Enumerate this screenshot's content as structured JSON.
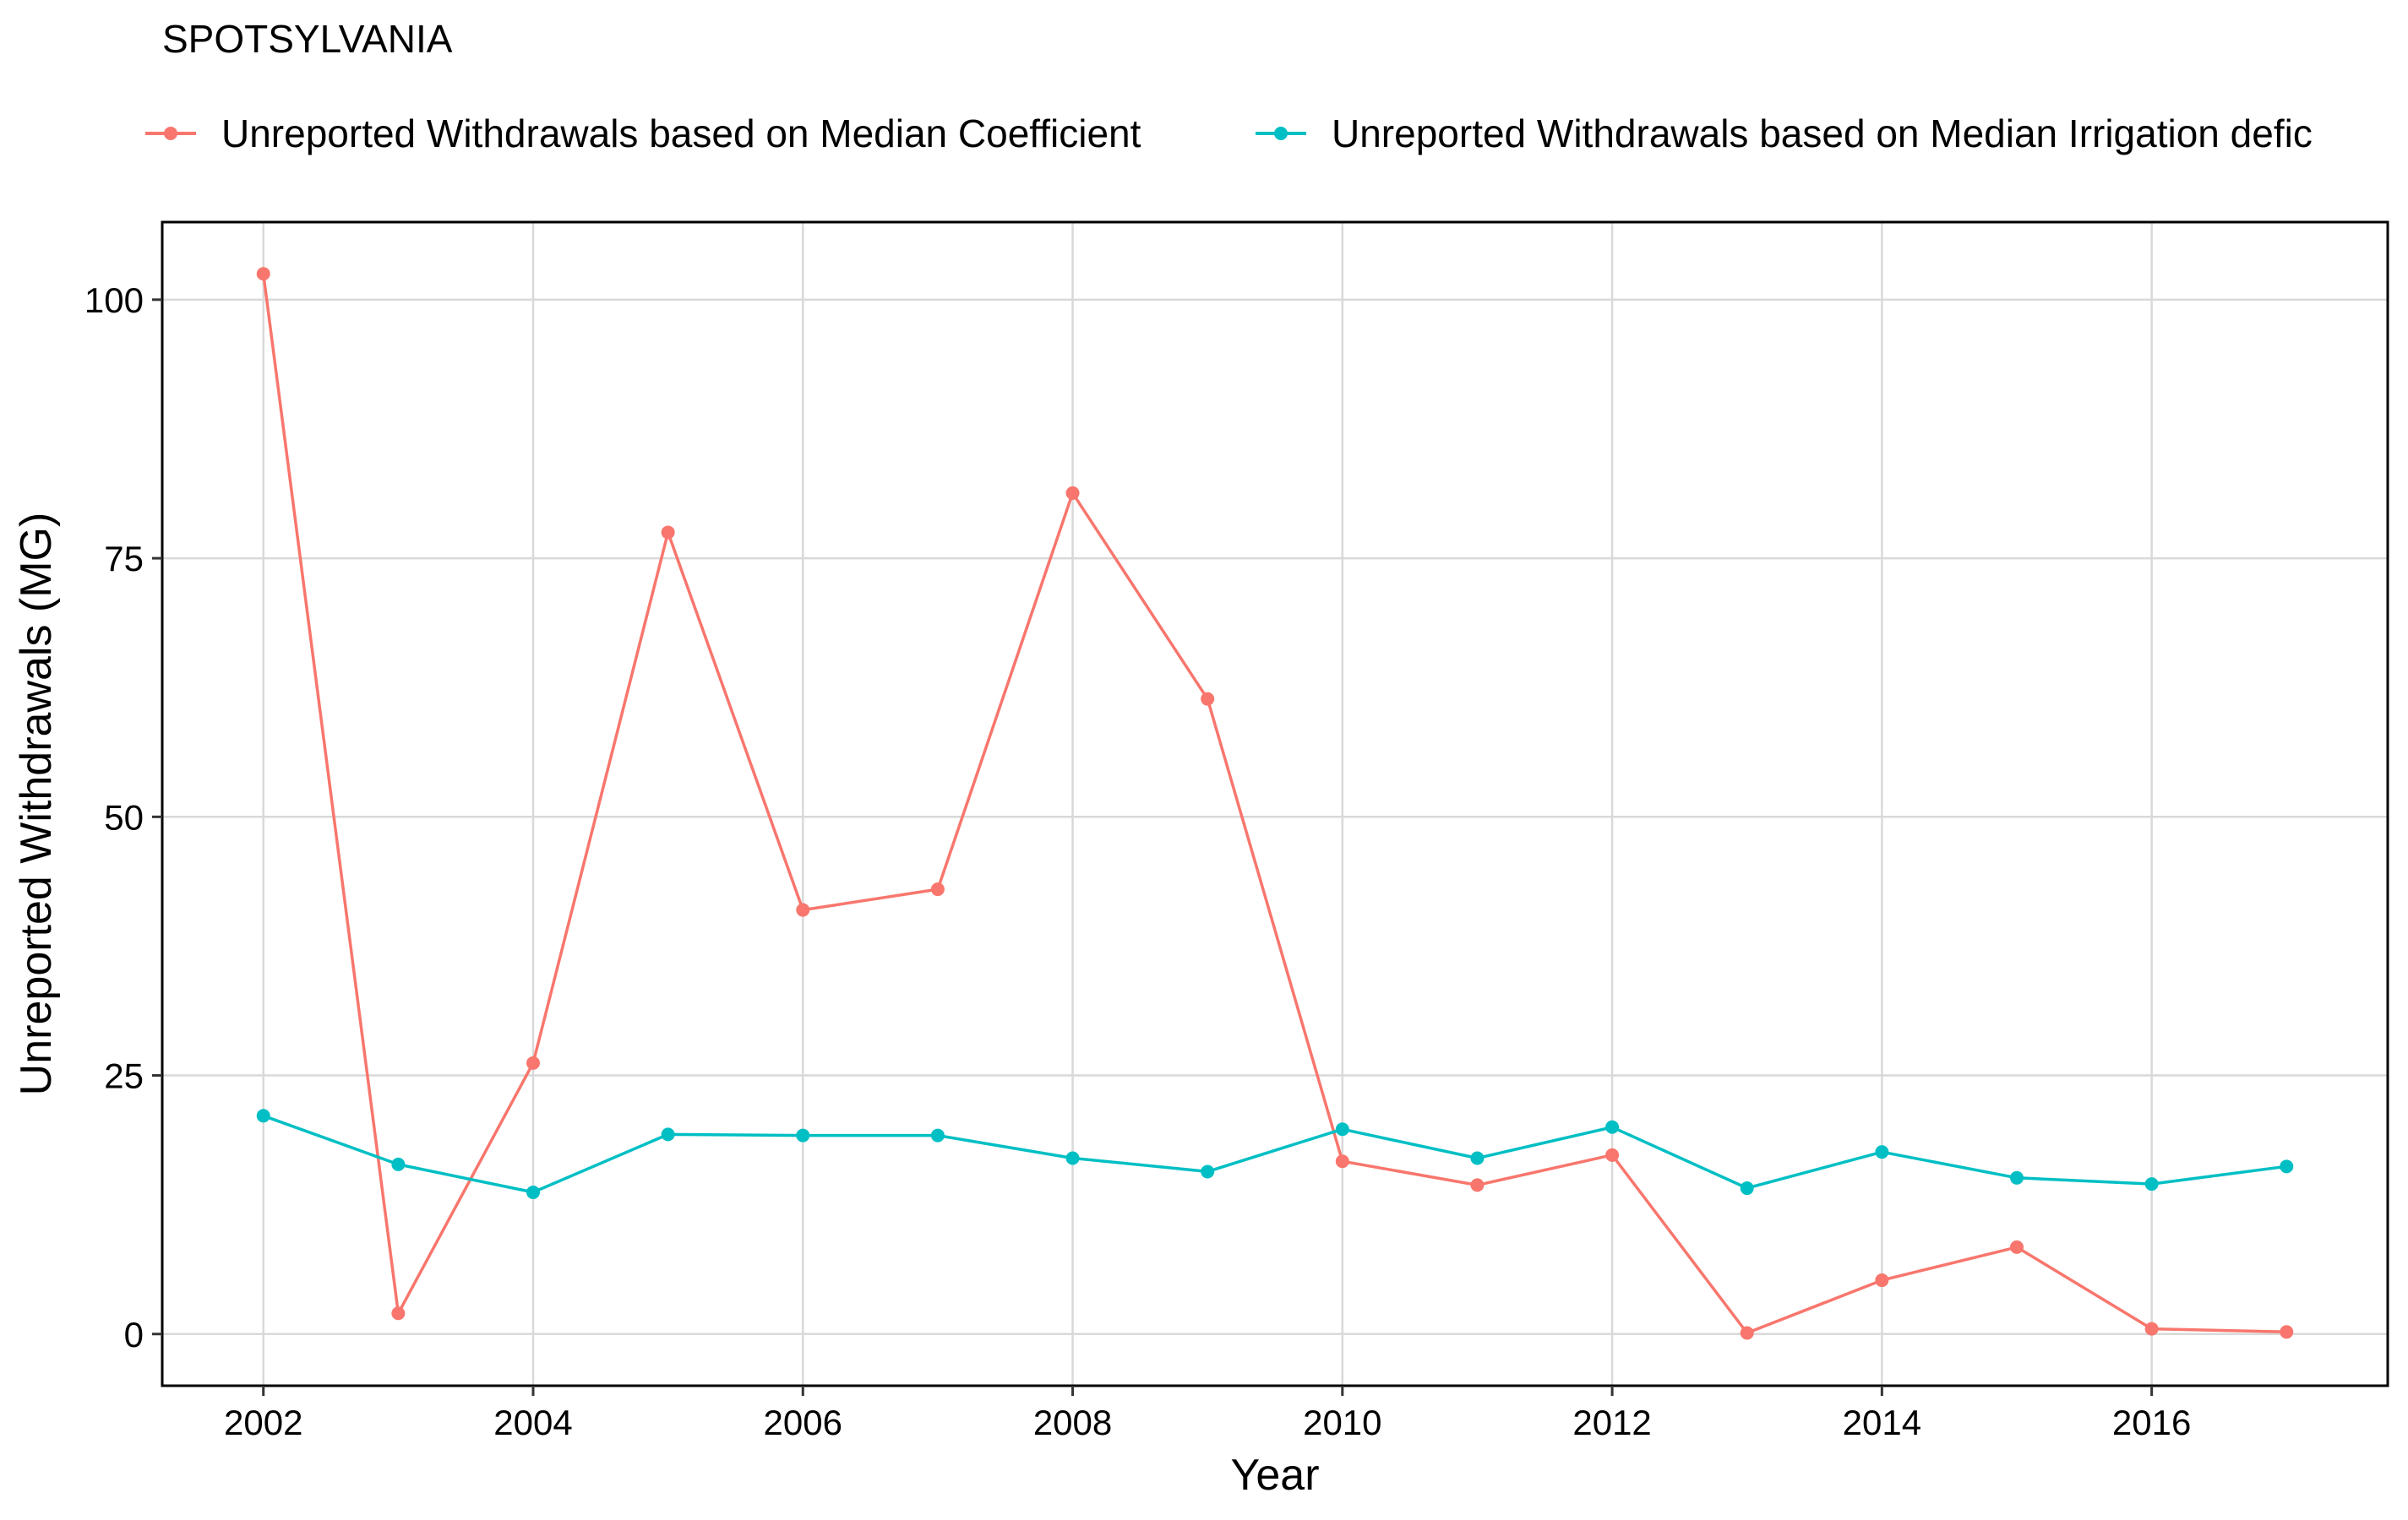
{
  "chart_data": {
    "type": "line",
    "title": "SPOTSYLVANIA",
    "xlabel": "Year",
    "ylabel": "Unreported Withdrawals (MG)",
    "xlim": [
      2001.25,
      2017.75
    ],
    "ylim": [
      -5,
      107.5
    ],
    "x_ticks": [
      2002,
      2004,
      2006,
      2008,
      2010,
      2012,
      2014,
      2016
    ],
    "y_ticks": [
      0,
      25,
      50,
      75,
      100
    ],
    "grid": true,
    "legend_position": "top",
    "series": [
      {
        "name": "Unreported Withdrawals based on Median Coefficient",
        "color": "#F8766D",
        "x": [
          2002,
          2003,
          2004,
          2005,
          2006,
          2007,
          2008,
          2009,
          2010,
          2011,
          2012,
          2013,
          2014,
          2015,
          2016,
          2017
        ],
        "values": [
          102.5,
          2.0,
          26.2,
          77.5,
          41.0,
          43.0,
          81.3,
          61.4,
          16.7,
          14.4,
          17.3,
          0.1,
          5.2,
          8.4,
          0.5,
          0.2
        ]
      },
      {
        "name": "Unreported Withdrawals based on Median Irrigation defic",
        "color": "#00BFC4",
        "x": [
          2002,
          2003,
          2004,
          2005,
          2006,
          2007,
          2008,
          2009,
          2010,
          2011,
          2012,
          2013,
          2014,
          2015,
          2016,
          2017
        ],
        "values": [
          21.1,
          16.4,
          13.7,
          19.3,
          19.2,
          19.2,
          17.0,
          15.7,
          19.8,
          17.0,
          20.0,
          14.1,
          17.6,
          15.1,
          14.5,
          16.2
        ]
      }
    ]
  }
}
